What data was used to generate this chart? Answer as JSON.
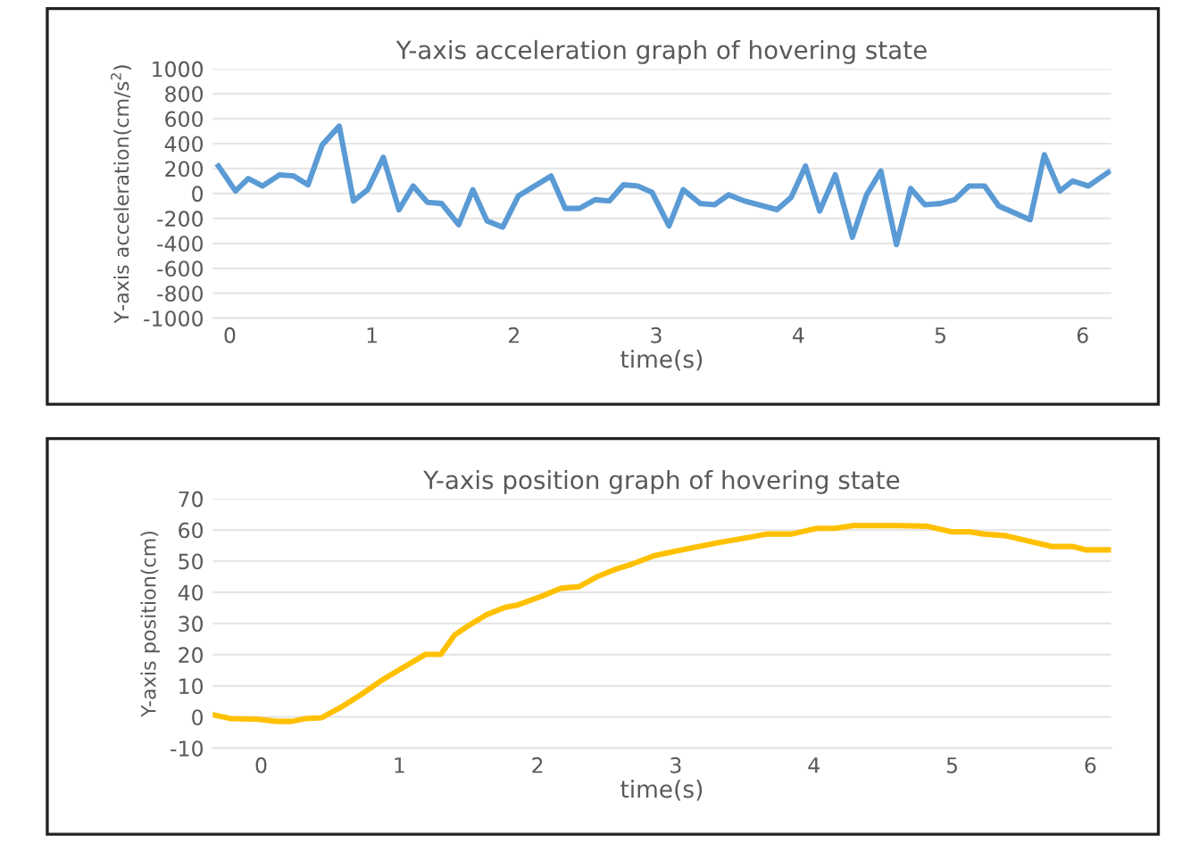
{
  "chart_data": [
    {
      "type": "line",
      "title": "Y-axis acceleration graph of hovering state",
      "xlabel": "time(s)",
      "ylabel": "Y-axis acceleration(cm/s$^{2}$)",
      "xlim": [
        -0.12,
        6.2
      ],
      "xticks": [
        0,
        1,
        2,
        3,
        4,
        5,
        6
      ],
      "ylim": [
        -1000,
        1000
      ],
      "yticks": [
        -1000,
        -800,
        -600,
        -400,
        -200,
        0,
        200,
        400,
        600,
        800,
        1000
      ],
      "grid": "y",
      "marker": "none",
      "line_style": "solid",
      "series": [
        {
          "color": "#5b9bd5",
          "x": [
            -0.08,
            0.04,
            0.13,
            0.23,
            0.35,
            0.45,
            0.55,
            0.65,
            0.77,
            0.87,
            0.97,
            1.08,
            1.19,
            1.29,
            1.39,
            1.49,
            1.61,
            1.71,
            1.81,
            1.92,
            2.03,
            2.13,
            2.26,
            2.36,
            2.46,
            2.57,
            2.67,
            2.77,
            2.87,
            2.97,
            3.09,
            3.19,
            3.31,
            3.41,
            3.51,
            3.62,
            3.72,
            3.85,
            3.95,
            4.05,
            4.15,
            4.26,
            4.38,
            4.48,
            4.58,
            4.69,
            4.79,
            4.89,
            5.0,
            5.1,
            5.2,
            5.31,
            5.41,
            5.51,
            5.63,
            5.73,
            5.84,
            5.93,
            6.04,
            6.18
          ],
          "values": [
            220,
            20,
            120,
            60,
            150,
            140,
            70,
            390,
            540,
            -60,
            30,
            290,
            -130,
            60,
            -70,
            -80,
            -250,
            30,
            -220,
            -270,
            -20,
            50,
            140,
            -120,
            -120,
            -50,
            -60,
            70,
            60,
            10,
            -260,
            30,
            -80,
            -90,
            -10,
            -60,
            -90,
            -130,
            -30,
            220,
            -140,
            150,
            -350,
            -10,
            180,
            -410,
            40,
            -90,
            -80,
            -50,
            60,
            60,
            -100,
            -150,
            -210,
            310,
            20,
            100,
            60,
            170
          ]
        }
      ]
    },
    {
      "type": "line",
      "title": "Y-axis position graph of hovering state",
      "xlabel": "time(s)",
      "ylabel": "Y-axis position(cm)",
      "xlim": [
        -0.35,
        6.15
      ],
      "xticks": [
        0,
        1,
        2,
        3,
        4,
        5,
        6
      ],
      "ylim": [
        -10,
        70
      ],
      "yticks": [
        -10,
        0,
        10,
        20,
        30,
        40,
        50,
        60,
        70
      ],
      "grid": "y",
      "marker": "none",
      "line_style": "solid",
      "series": [
        {
          "color": "#ffc000",
          "x": [
            -0.35,
            -0.22,
            -0.02,
            0.11,
            0.22,
            0.32,
            0.44,
            0.58,
            0.73,
            0.88,
            1.04,
            1.19,
            1.3,
            1.4,
            1.5,
            1.63,
            1.76,
            1.86,
            2.02,
            2.17,
            2.3,
            2.43,
            2.56,
            2.68,
            2.84,
            3.04,
            3.3,
            3.56,
            3.66,
            3.84,
            4.02,
            4.15,
            4.28,
            4.59,
            4.82,
            5.0,
            5.13,
            5.23,
            5.38,
            5.56,
            5.72,
            5.87,
            5.97,
            6.08,
            6.15
          ],
          "values": [
            0.7,
            -0.5,
            -0.7,
            -1.4,
            -1.4,
            -0.5,
            -0.2,
            3.2,
            7.4,
            12,
            16.2,
            20.1,
            20.1,
            26.3,
            29.3,
            32.8,
            35.1,
            36,
            38.6,
            41.3,
            41.8,
            45,
            47.3,
            49,
            51.7,
            53.6,
            55.9,
            57.9,
            58.7,
            58.7,
            60.5,
            60.5,
            61.4,
            61.4,
            61.2,
            59.4,
            59.4,
            58.7,
            58.2,
            56.4,
            54.7,
            54.7,
            53.6,
            53.6,
            53.6
          ]
        }
      ]
    }
  ]
}
